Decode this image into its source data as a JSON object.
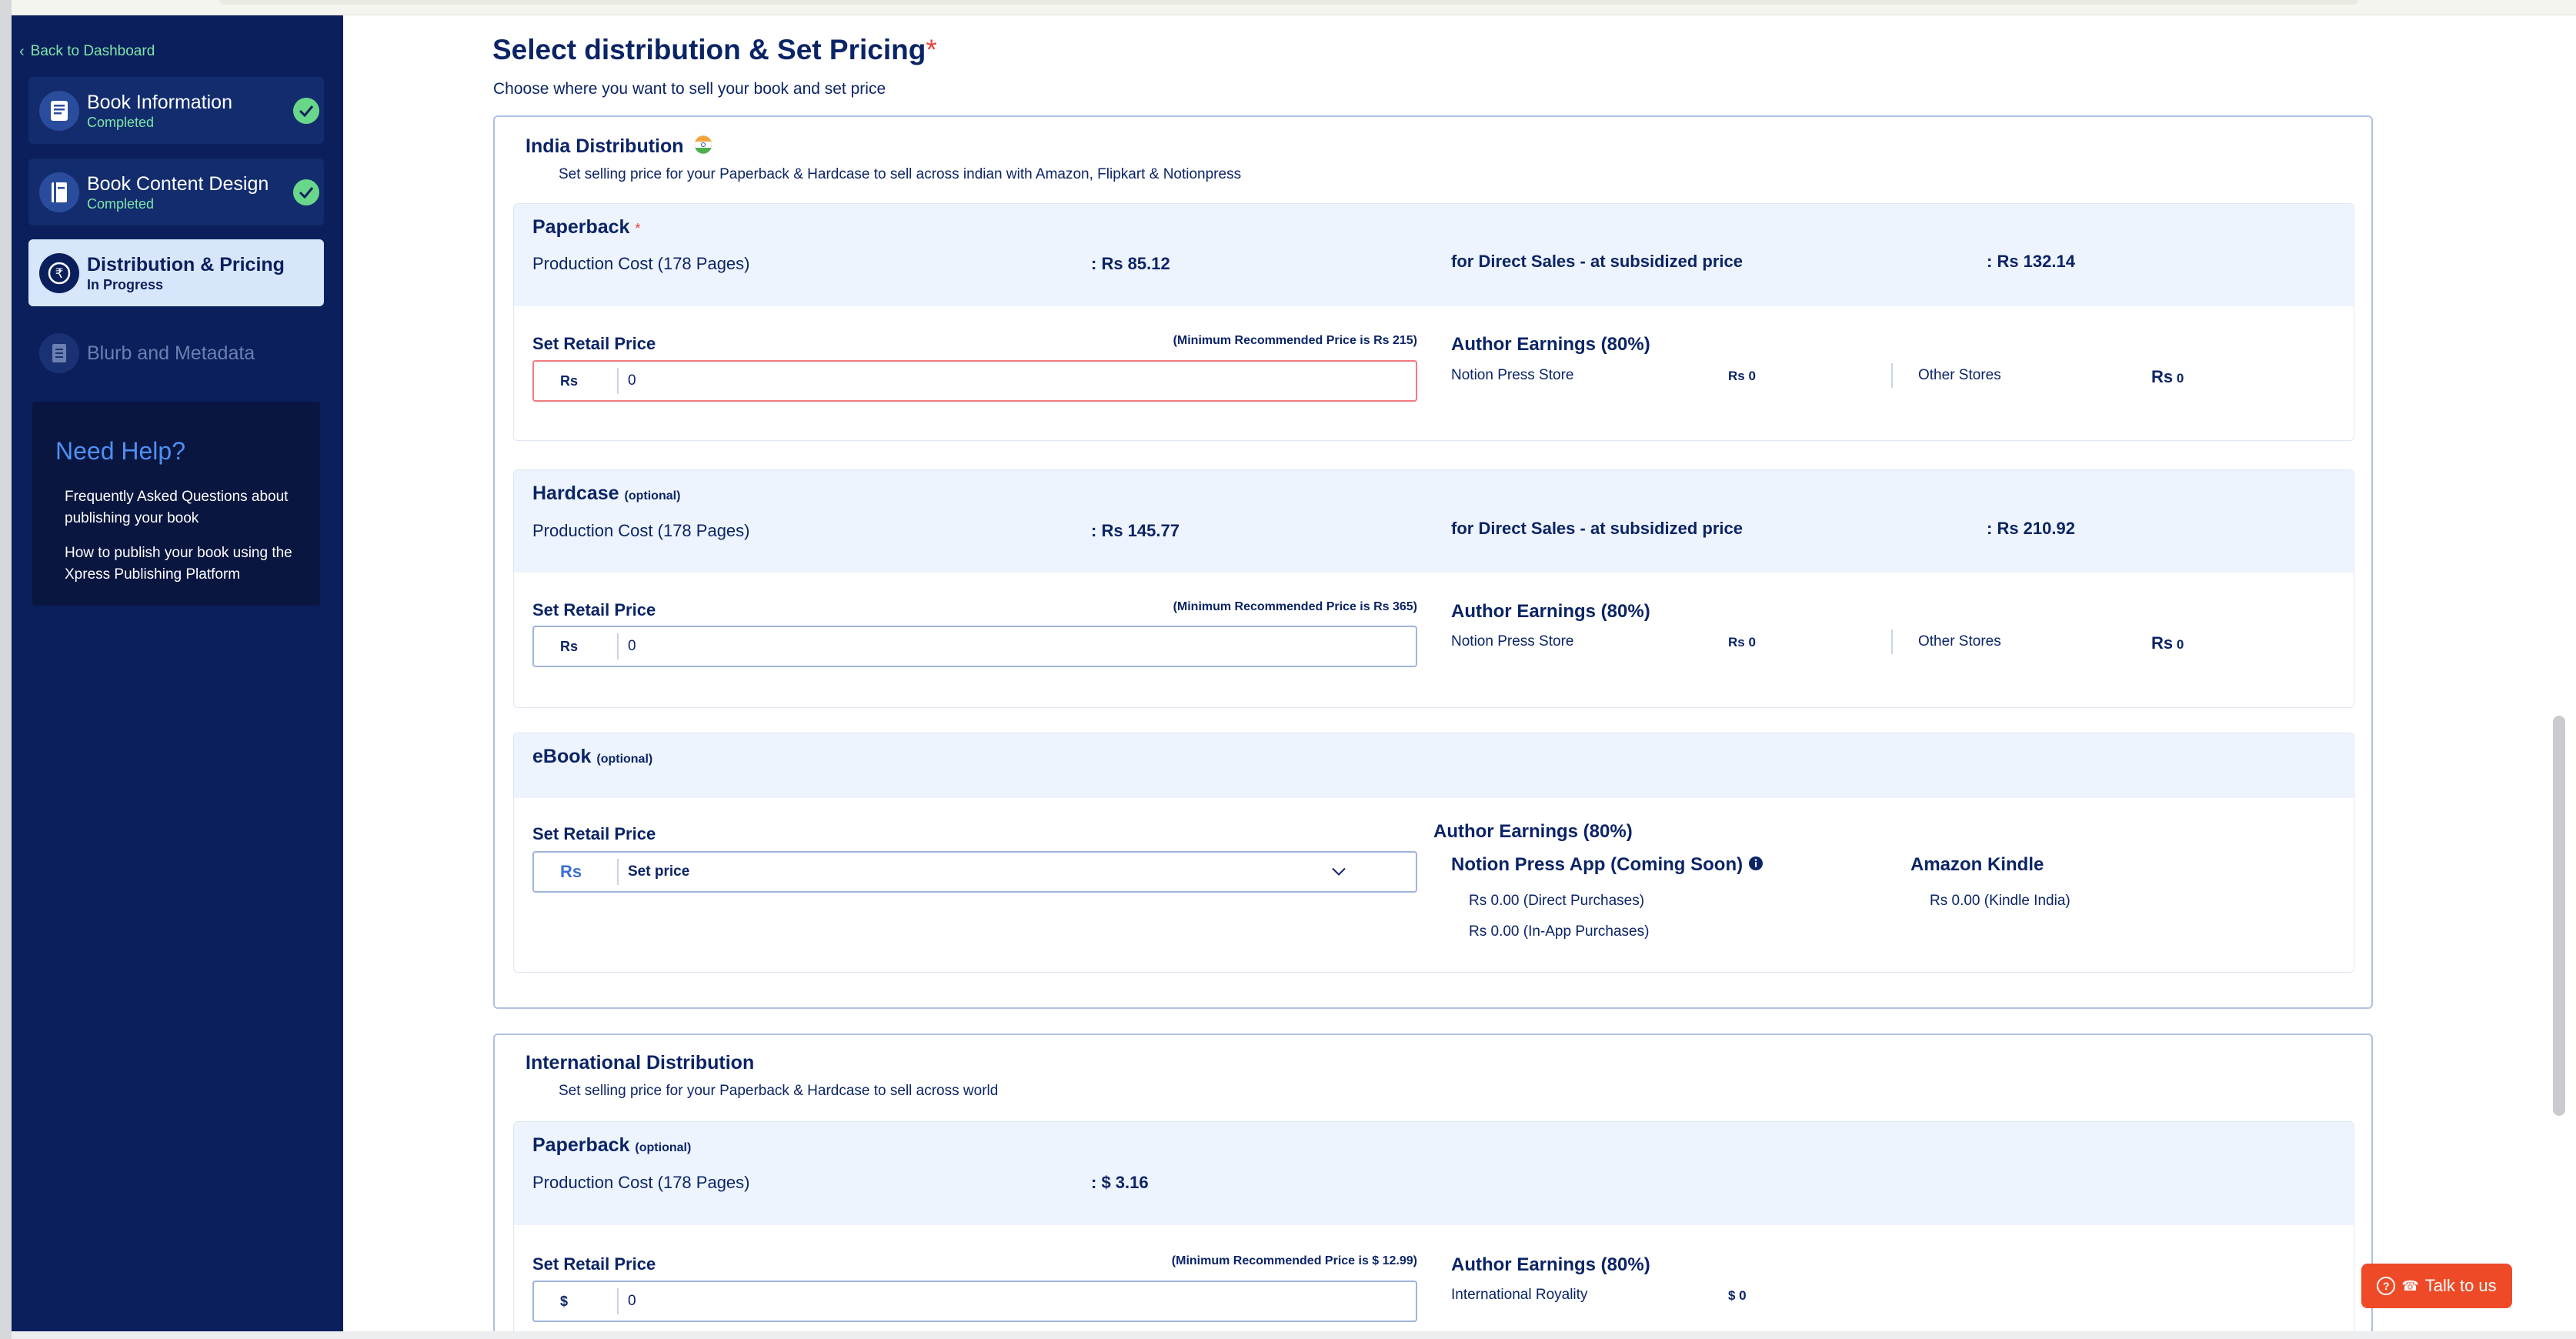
{
  "sidebar": {
    "back_label": "Back to Dashboard",
    "steps": [
      {
        "title": "Book Information",
        "status": "Completed"
      },
      {
        "title": "Book Content Design",
        "status": "Completed"
      },
      {
        "title": "Distribution & Pricing",
        "status": "In Progress"
      },
      {
        "title": "Blurb and Metadata",
        "status": ""
      }
    ],
    "help": {
      "title": "Need Help?",
      "links": [
        "Frequently Asked Questions about publishing your book",
        "How to publish your book using the Xpress Publishing Platform"
      ]
    }
  },
  "main": {
    "title": "Select distribution & Set Pricing",
    "required_mark": "*",
    "subtitle": "Choose where you want to sell your book and set price"
  },
  "india": {
    "title": "India Distribution",
    "subtitle": "Set selling price for your Paperback & Hardcase to sell across indian with Amazon, Flipkart & Notionpress",
    "paperback": {
      "label": "Paperback",
      "req": "*",
      "production_label": "Production Cost (178 Pages)",
      "production_value": ": Rs 85.12",
      "direct_label": "for Direct Sales - at subsidized price",
      "direct_value": ": Rs 132.14",
      "set_price_label": "Set Retail Price",
      "min_rec": "(Minimum Recommended Price is Rs 215)",
      "currency": "Rs",
      "value": "0",
      "earnings_label": "Author Earnings (80%)",
      "store1_label": "Notion Press Store",
      "store1_value": "Rs 0",
      "store2_label": "Other Stores",
      "store2_cur": "Rs",
      "store2_value": "0"
    },
    "hardcase": {
      "label": "Hardcase",
      "opt": "(optional)",
      "production_label": "Production Cost (178 Pages)",
      "production_value": ": Rs 145.77",
      "direct_label": "for Direct Sales - at subsidized price",
      "direct_value": ": Rs 210.92",
      "set_price_label": "Set Retail Price",
      "min_rec": "(Minimum Recommended Price is Rs 365)",
      "currency": "Rs",
      "value": "0",
      "earnings_label": "Author Earnings (80%)",
      "store1_label": "Notion Press Store",
      "store1_value": "Rs 0",
      "store2_label": "Other Stores",
      "store2_cur": "Rs",
      "store2_value": "0"
    },
    "ebook": {
      "label": "eBook",
      "opt": "(optional)",
      "set_price_label": "Set Retail Price",
      "currency": "Rs",
      "select_value": "Set price",
      "earnings_label": "Author Earnings (80%)",
      "app_label": "Notion Press App (Coming Soon)",
      "app_direct": "Rs 0.00 (Direct Purchases)",
      "app_inapp": "Rs 0.00 (In-App Purchases)",
      "kindle_label": "Amazon Kindle",
      "kindle_value": "Rs 0.00 (Kindle India)"
    }
  },
  "international": {
    "title": "International Distribution",
    "subtitle": "Set selling price for your Paperback & Hardcase to sell across world",
    "paperback": {
      "label": "Paperback",
      "opt": "(optional)",
      "production_label": "Production Cost (178 Pages)",
      "production_value": ": $ 3.16",
      "set_price_label": "Set Retail Price",
      "min_rec": "(Minimum Recommended Price is $ 12.99)",
      "currency": "$",
      "value": "0",
      "earnings_label": "Author Earnings (80%)",
      "royalty_label": "International Royality",
      "royalty_value": "$ 0"
    }
  },
  "chat": {
    "label": "Talk to us",
    "icon": "question-icon"
  },
  "colors": {
    "sidebar": "#0a1f5c",
    "accent": "#0b2466",
    "success": "#69d78a",
    "error": "#e2433e",
    "chat": "#ee4a28"
  }
}
